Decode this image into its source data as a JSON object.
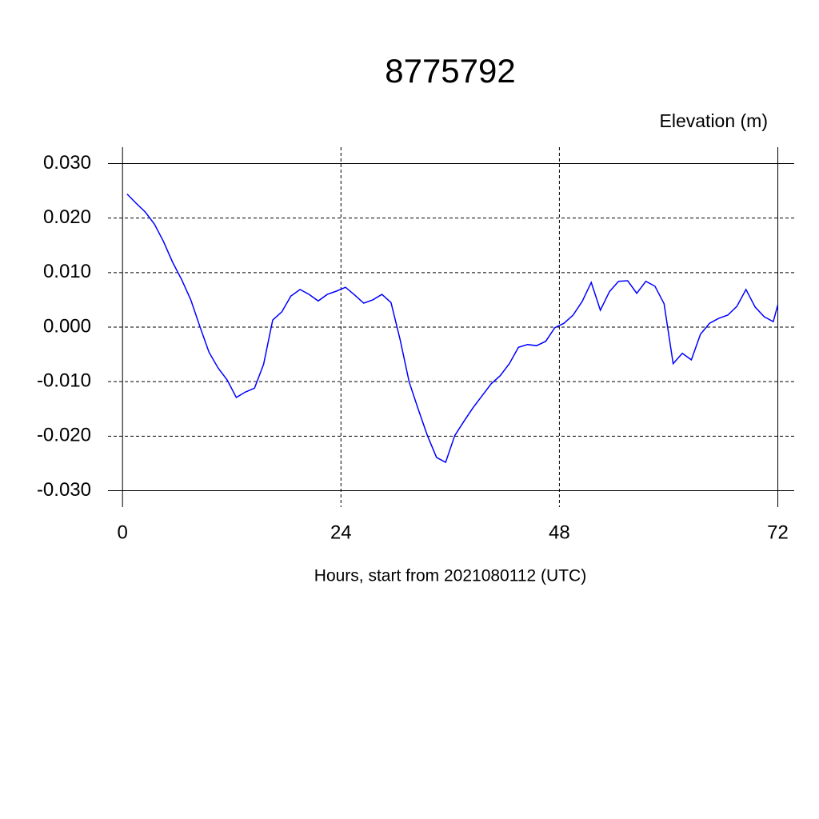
{
  "chart_data": {
    "type": "line",
    "title": "8775792",
    "subtitle": "Elevation (m)",
    "x_label": "Hours, start from 2021080112 (UTC)",
    "x": [
      0.5,
      1.5,
      2.5,
      3.5,
      4.5,
      5.5,
      6.5,
      7.5,
      8.5,
      9.5,
      10.5,
      11.5,
      12.5,
      13.5,
      14.5,
      15.5,
      16.5,
      17.5,
      18.5,
      19.5,
      20.5,
      21.5,
      22.5,
      23.5,
      24.5,
      25.5,
      26.5,
      27.5,
      28.5,
      29.5,
      30.5,
      31.5,
      32.5,
      33.5,
      34.5,
      35.5,
      36.5,
      37.5,
      38.5,
      39.5,
      40.5,
      41.5,
      42.5,
      43.5,
      44.5,
      45.5,
      46.5,
      47.5,
      48.5,
      49.5,
      50.5,
      51.5,
      52.5,
      53.5,
      54.5,
      55.5,
      56.5,
      57.5,
      58.5,
      59.5,
      60.5,
      61.5,
      62.5,
      63.5,
      64.5,
      65.5,
      66.5,
      67.5,
      68.5,
      69.5,
      70.5,
      71.5,
      72
    ],
    "series": [
      {
        "color": "#0000ff",
        "values": [
          0.0244,
          0.0227,
          0.0211,
          0.0189,
          0.0157,
          0.0119,
          0.0087,
          0.005,
          0.0001,
          -0.0046,
          -0.0075,
          -0.0097,
          -0.0129,
          -0.0119,
          -0.0112,
          -0.0068,
          0.0013,
          0.0028,
          0.0057,
          0.0069,
          0.006,
          0.0048,
          0.006,
          0.0066,
          0.0073,
          0.0059,
          0.0044,
          0.005,
          0.006,
          0.0045,
          -0.0023,
          -0.0101,
          -0.0151,
          -0.0199,
          -0.0239,
          -0.0248,
          -0.0199,
          -0.0173,
          -0.0148,
          -0.0126,
          -0.0104,
          -0.0089,
          -0.0067,
          -0.0037,
          -0.0032,
          -0.0034,
          -0.0026,
          -0.0001,
          0.0007,
          0.0022,
          0.0047,
          0.0082,
          0.0031,
          0.0065,
          0.0084,
          0.0085,
          0.0062,
          0.0084,
          0.0075,
          0.0043,
          -0.0067,
          -0.0048,
          -0.006,
          -0.0013,
          0.0007,
          0.0016,
          0.0022,
          0.0038,
          0.0069,
          0.0037,
          0.0019,
          0.001,
          0.0041
        ]
      }
    ],
    "xlim": [
      -1.6,
      73.8
    ],
    "ylim": [
      -0.033,
      0.033
    ],
    "xticks": [
      0,
      24,
      48,
      72
    ],
    "yticks": [
      {
        "value": -0.03,
        "label": "-0.030"
      },
      {
        "value": -0.02,
        "label": "-0.020"
      },
      {
        "value": -0.01,
        "label": "-0.010"
      },
      {
        "value": 0,
        "label": "0.000"
      },
      {
        "value": 0.01,
        "label": "0.010"
      },
      {
        "value": 0.02,
        "label": "0.020"
      },
      {
        "value": 0.03,
        "label": "0.030"
      }
    ],
    "grid": true
  }
}
